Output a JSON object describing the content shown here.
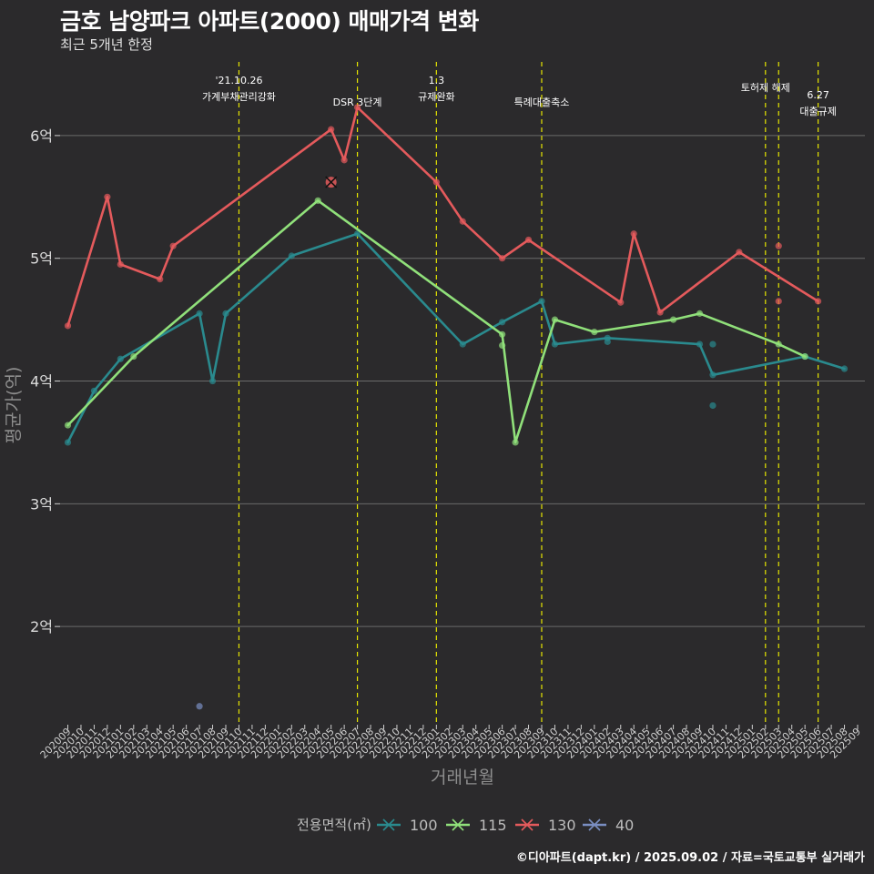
{
  "header": {
    "title": "금호 남양파크 아파트(2000) 매매가격 변화",
    "subtitle": "최근 5개년 한정"
  },
  "footer": {
    "caption": "©디아파트(dapt.kr) / 2025.09.02 / 자료=국토교통부 실거래가"
  },
  "chart_data": {
    "type": "line",
    "xlabel": "거래년월",
    "ylabel": "평균가(억)",
    "ylim": [
      1.2,
      6.6
    ],
    "y_ticks": [
      {
        "value": 2,
        "label": "2억"
      },
      {
        "value": 3,
        "label": "3억"
      },
      {
        "value": 4,
        "label": "4억"
      },
      {
        "value": 5,
        "label": "5억"
      },
      {
        "value": 6,
        "label": "6억"
      }
    ],
    "categories": [
      "202009",
      "202010",
      "202011",
      "202012",
      "202101",
      "202102",
      "202103",
      "202104",
      "202105",
      "202106",
      "202107",
      "202108",
      "202109",
      "202110",
      "202111",
      "202112",
      "202201",
      "202202",
      "202203",
      "202204",
      "202205",
      "202206",
      "202207",
      "202208",
      "202209",
      "202210",
      "202211",
      "202212",
      "202301",
      "202302",
      "202303",
      "202304",
      "202305",
      "202306",
      "202307",
      "202308",
      "202309",
      "202310",
      "202311",
      "202312",
      "202401",
      "202402",
      "202403",
      "202404",
      "202405",
      "202406",
      "202407",
      "202408",
      "202409",
      "202410",
      "202411",
      "202412",
      "202501",
      "202502",
      "202503",
      "202504",
      "202505",
      "202506",
      "202507",
      "202508",
      "202509"
    ],
    "grid": true,
    "legend": {
      "title": "전용면적(㎡)",
      "position": "bottom",
      "entries": [
        {
          "label": "100",
          "color": "#2a8a8e"
        },
        {
          "label": "115",
          "color": "#90e07a"
        },
        {
          "label": "130",
          "color": "#e45a5c"
        },
        {
          "label": "40",
          "color": "#7a8ec2"
        }
      ]
    },
    "series": [
      {
        "name": "100",
        "color": "#2a8a8e",
        "line": [
          [
            "202009",
            3.5
          ],
          [
            "202011",
            3.92
          ],
          [
            "202101",
            4.18
          ],
          [
            "202107",
            4.55
          ],
          [
            "202108",
            4.0
          ],
          [
            "202109",
            4.55
          ],
          [
            "202202",
            5.02
          ],
          [
            "202207",
            5.2
          ],
          [
            "202303",
            4.3
          ],
          [
            "202306",
            4.48
          ],
          [
            "202309",
            4.65
          ],
          [
            "202310",
            4.3
          ],
          [
            "202402",
            4.35
          ],
          [
            "202409",
            4.3
          ],
          [
            "202410",
            4.05
          ],
          [
            "202505",
            4.2
          ],
          [
            "202508",
            4.1
          ]
        ],
        "extra_points": [
          [
            "202402",
            4.32
          ],
          [
            "202410",
            4.3
          ],
          [
            "202410",
            3.8
          ]
        ]
      },
      {
        "name": "115",
        "color": "#90e07a",
        "line": [
          [
            "202009",
            3.64
          ],
          [
            "202102",
            4.2
          ],
          [
            "202204",
            5.47
          ],
          [
            "202306",
            4.38
          ],
          [
            "202307",
            3.5
          ],
          [
            "202310",
            4.5
          ],
          [
            "202401",
            4.4
          ],
          [
            "202407",
            4.5
          ],
          [
            "202409",
            4.55
          ],
          [
            "202503",
            4.3
          ],
          [
            "202505",
            4.2
          ]
        ],
        "extra_points": [
          [
            "202306",
            4.29
          ]
        ]
      },
      {
        "name": "130",
        "color": "#e45a5c",
        "line": [
          [
            "202009",
            4.45
          ],
          [
            "202012",
            5.5
          ],
          [
            "202101",
            4.95
          ],
          [
            "202104",
            4.83
          ],
          [
            "202105",
            5.1
          ],
          [
            "202205",
            6.05
          ],
          [
            "202206",
            5.8
          ],
          [
            "202207",
            6.23
          ],
          [
            "202301",
            5.62
          ],
          [
            "202303",
            5.3
          ],
          [
            "202306",
            5.0
          ],
          [
            "202308",
            5.15
          ],
          [
            "202403",
            4.64
          ],
          [
            "202404",
            5.2
          ],
          [
            "202406",
            4.56
          ],
          [
            "202412",
            5.05
          ],
          [
            "202506",
            4.65
          ]
        ],
        "extra_points": [
          [
            "202503",
            5.1
          ],
          [
            "202503",
            4.65
          ]
        ]
      },
      {
        "name": "40",
        "color": "#7a8ec2",
        "line": [],
        "extra_points": [
          [
            "202107",
            1.35
          ]
        ]
      }
    ],
    "markers": [
      {
        "x": "202205",
        "y": 5.62,
        "series": "130",
        "shape": "x"
      }
    ],
    "events": [
      {
        "x": "202110",
        "lines": [
          "'21.10.26",
          "가계부채관리강화"
        ]
      },
      {
        "x": "202207",
        "lines": [
          "DSR 3단계"
        ]
      },
      {
        "x": "202301",
        "lines": [
          "1.3",
          "규제완화"
        ]
      },
      {
        "x": "202309",
        "lines": [
          "특례대출축소"
        ]
      },
      {
        "x": "202502",
        "lines": [
          "토허제 해제"
        ]
      },
      {
        "x": "202503",
        "lines": []
      },
      {
        "x": "202506",
        "lines": [
          "6.27",
          "대출규제"
        ]
      }
    ]
  }
}
